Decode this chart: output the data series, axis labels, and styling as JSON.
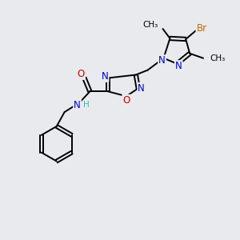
{
  "background_color": "#e8eaed",
  "atom_colors": {
    "C": "#000000",
    "N": "#0000cc",
    "O": "#cc0000",
    "H": "#50b0b0",
    "Br": "#cc6600"
  },
  "bond_color": "#000000",
  "figsize": [
    3.0,
    3.0
  ],
  "dpi": 100,
  "lw": 1.4,
  "fs": 8.5,
  "fs_small": 7.5
}
